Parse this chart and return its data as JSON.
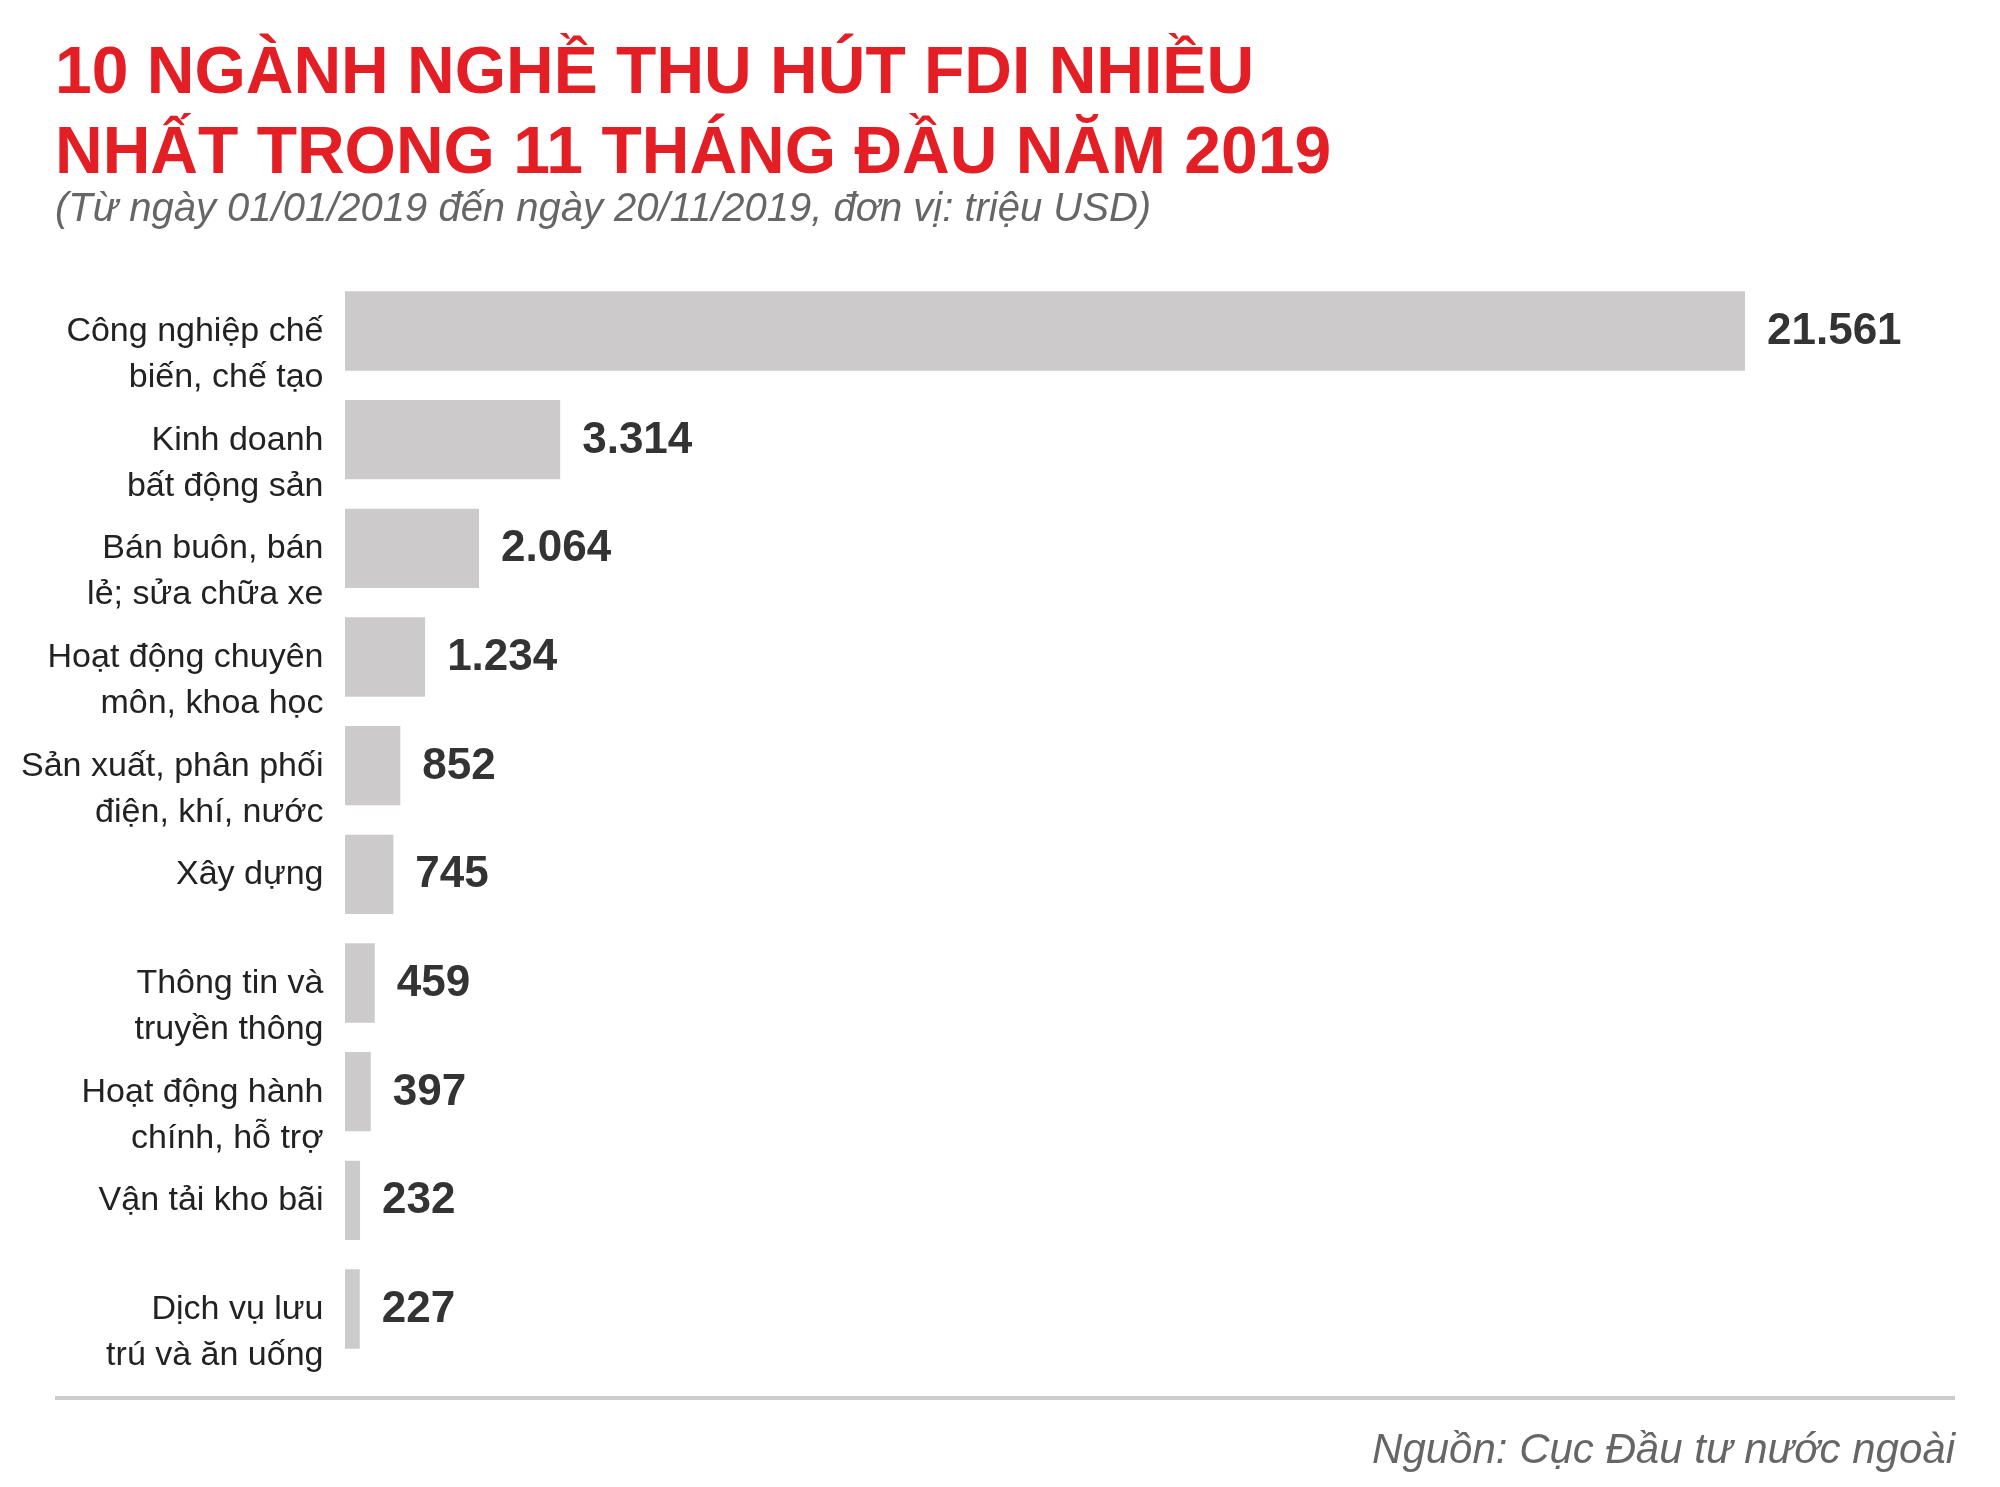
{
  "chart_data": {
    "type": "bar",
    "orientation": "horizontal",
    "title": "10 NGÀNH NGHỀ THU HÚT FDI NHIỀU NHẤT TRONG 11 THÁNG ĐẦU NĂM 2019",
    "subtitle": "(Từ ngày 01/01/2019 đến ngày 20/11/2019, đơn vị: triệu USD)",
    "categories": [
      "Công nghiệp chế biến, chế tạo",
      "Kinh doanh bất động sản",
      "Bán buôn, bán lẻ; sửa chữa xe",
      "Hoạt động chuyên môn, khoa học",
      "Sản xuất, phân phối điện, khí, nước",
      "Xây dựng",
      "Thông tin và truyền thông",
      "Hoạt động hành chính, hỗ trợ",
      "Vận tải kho bãi",
      "Dịch vụ lưu trú và ăn uống"
    ],
    "values": [
      21561,
      3314,
      2064,
      1234,
      852,
      745,
      459,
      397,
      232,
      227
    ],
    "value_labels": [
      "21.561",
      "3.314",
      "2.064",
      "1.234",
      "852",
      "745",
      "459",
      "397",
      "232",
      "227"
    ],
    "color": "#cccacb",
    "annotations": [
      "Nguồn: Cục Đầu tư nước ngoài"
    ]
  }
}
